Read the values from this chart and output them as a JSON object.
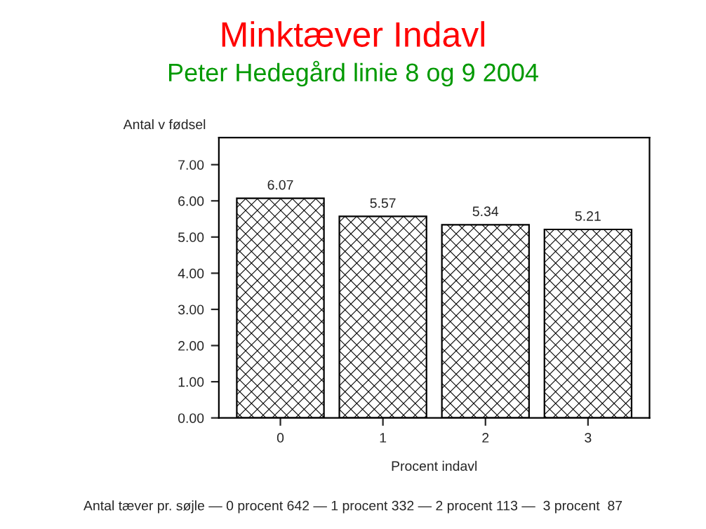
{
  "chart_data": {
    "type": "bar",
    "title": "Minktæver Indavl",
    "subtitle": "Peter Hedegård linie 8 og 9 2004",
    "xlabel": "Procent indavl",
    "ylabel": "Antal v fødsel",
    "categories": [
      "0",
      "1",
      "2",
      "3"
    ],
    "values": [
      6.07,
      5.57,
      5.34,
      5.21
    ],
    "color": "#000000",
    "data_labels": true,
    "ylim": [
      0,
      7.75
    ],
    "yticks": [
      {
        "value": 0,
        "label": "0.00"
      },
      {
        "value": 1,
        "label": "1.00"
      },
      {
        "value": 2,
        "label": "2.00"
      },
      {
        "value": 3,
        "label": "3.00"
      },
      {
        "value": 4,
        "label": "4.00"
      },
      {
        "value": 5,
        "label": "5.00"
      },
      {
        "value": 6,
        "label": "6.00"
      },
      {
        "value": 7,
        "label": "7.00"
      }
    ],
    "grid": false,
    "legend": false,
    "annotations": [
      "Antal tæver pr. søjle — 0 procent 642 — 1 procent 332 — 2 procent 113 —  3 procent  87"
    ]
  }
}
